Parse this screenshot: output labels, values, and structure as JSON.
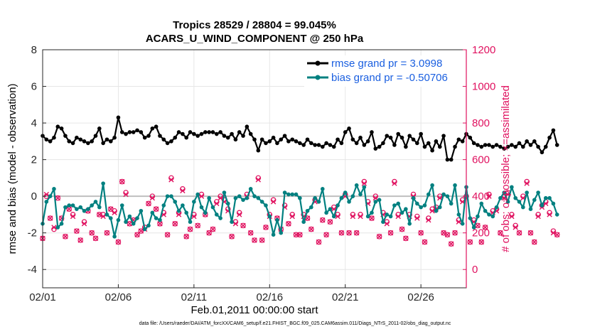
{
  "chart_data": {
    "type": "line",
    "title": [
      "Tropics 28529 / 28804 = 99.045%",
      "ACARS_U_WIND_COMPONENT @ 250 hPa"
    ],
    "xlabel": "Feb.01,2011 00:00:00 start",
    "ylabel_left": "rmse and bias (model - observation)",
    "ylabel_right": "# of obs: o=possible; ×=assimilated",
    "footer": "data file: /Users/raeder/DAI/ATM_forcXX/CAM6_setup/f.e21.FHIST_BGC.f09_025.CAM6assim.011/Diags_NTrS_2011-02/obs_diag_output.nc",
    "x_ticks": [
      "02/01",
      "02/06",
      "02/11",
      "02/16",
      "02/21",
      "02/26"
    ],
    "x_tick_days": [
      0,
      5,
      10,
      15,
      20,
      25
    ],
    "xlim": [
      0,
      28
    ],
    "ylim_left": [
      -5,
      8
    ],
    "yticks_left": [
      -4,
      -2,
      0,
      2,
      4,
      6,
      8
    ],
    "ylim_right": [
      -100,
      1200
    ],
    "yticks_right": [
      0,
      200,
      400,
      600,
      800,
      1000,
      1200
    ],
    "legend": [
      {
        "label": "rmse grand pr = 3.0998",
        "color": "#000000"
      },
      {
        "label": "bias grand pr = -0.50706",
        "color": "#008080"
      }
    ],
    "colors": {
      "rmse": "#000000",
      "bias": "#008080",
      "obs": "#e0115f",
      "zero": "#bfbfbf",
      "legend_text": "#1a5fe0"
    },
    "series": [
      {
        "name": "rmse",
        "x_start": 0,
        "x_step": 0.25,
        "values": [
          3.3,
          3.1,
          3.0,
          3.2,
          3.8,
          3.7,
          3.3,
          3.0,
          2.9,
          3.2,
          3.1,
          3.0,
          2.9,
          3.0,
          3.3,
          3.7,
          2.9,
          3.1,
          3.0,
          3.2,
          4.3,
          3.5,
          3.4,
          3.5,
          3.5,
          3.6,
          3.5,
          3.2,
          3.3,
          3.7,
          3.8,
          3.3,
          3.1,
          2.9,
          3.0,
          3.2,
          3.5,
          3.4,
          3.2,
          3.5,
          3.4,
          3.3,
          3.4,
          3.5,
          3.5,
          3.5,
          3.4,
          3.5,
          3.3,
          3.2,
          3.4,
          3.1,
          3.5,
          3.3,
          3.8,
          3.4,
          3.1,
          2.5,
          3.1,
          2.9,
          3.0,
          3.2,
          2.9,
          3.1,
          3.3,
          3.0,
          3.1,
          3.0,
          2.9,
          2.8,
          3.1,
          2.9,
          2.8,
          2.8,
          2.7,
          2.9,
          2.8,
          2.7,
          3.1,
          2.9,
          3.5,
          3.7,
          3.1,
          2.9,
          3.2,
          2.8,
          3.0,
          3.5,
          2.6,
          2.7,
          2.9,
          3.3,
          3.2,
          2.8,
          3.4,
          3.2,
          2.7,
          3.3,
          3.1,
          2.9,
          3.4,
          2.7,
          2.9,
          2.5,
          3.0,
          2.7,
          3.3,
          2.0,
          2.0,
          2.7,
          3.1,
          3.0,
          3.4,
          3.2,
          2.9,
          2.8,
          2.7,
          2.8,
          2.8,
          2.7,
          2.8,
          2.7,
          2.6,
          2.7,
          2.8,
          2.7,
          2.9,
          2.7,
          3.0,
          2.8,
          3.0,
          2.7,
          2.4,
          2.7,
          3.2,
          3.6,
          2.8
        ]
      },
      {
        "name": "bias",
        "x_start": 0,
        "x_step": 0.25,
        "values": [
          -1.5,
          -0.3,
          0.0,
          0.4,
          -1.7,
          -1.5,
          -0.6,
          -0.5,
          -0.5,
          -0.7,
          -0.6,
          -0.8,
          -0.7,
          -0.5,
          -0.3,
          -0.6,
          0.7,
          -1.0,
          -1.2,
          -2.2,
          -1.3,
          -0.5,
          -1.4,
          -1.1,
          -1.5,
          -1.2,
          -0.8,
          -1.8,
          -1.6,
          -0.9,
          -1.2,
          -1.3,
          -0.5,
          0.0,
          0.0,
          -0.3,
          -0.8,
          -0.5,
          -0.9,
          -1.4,
          -0.3,
          0.1,
          -0.6,
          -0.9,
          -0.1,
          -0.6,
          -1.0,
          -1.2,
          0.2,
          -0.4,
          -1.4,
          -0.1,
          0.0,
          -0.2,
          -0.1,
          0.4,
          0.0,
          -0.1,
          -0.3,
          -0.5,
          -1.1,
          -2.1,
          -1.3,
          -2.0,
          0.2,
          0.1,
          0.1,
          0.1,
          -0.1,
          -1.4,
          -0.8,
          -0.6,
          -0.1,
          -0.3,
          0.4,
          -0.9,
          -0.7,
          -1.1,
          -0.5,
          -0.1,
          0.2,
          -0.3,
          0.0,
          0.6,
          0.1,
          0.5,
          -1.1,
          -0.9,
          -0.3,
          -0.2,
          -1.4,
          -1.0,
          -1.1,
          -0.5,
          -0.4,
          -0.9,
          -0.7,
          -1.5,
          -0.1,
          -0.4,
          -0.6,
          -0.5,
          0.1,
          0.6,
          -0.8,
          -0.6,
          0.1,
          0.0,
          -0.4,
          0.6,
          -1.0,
          -1.5,
          0.5,
          -1.2,
          -1.7,
          -1.1,
          -0.4,
          -0.8,
          -1.0,
          -1.1,
          -0.6,
          -0.1,
          0.2,
          -0.3,
          0.5,
          -0.1,
          -0.3,
          -0.6,
          0.2,
          -0.7,
          -0.2,
          0.2,
          -0.5,
          -0.1,
          -0.1,
          -0.4,
          -1.0
        ]
      },
      {
        "name": "obs_possible",
        "axis": "right",
        "x_start": 0,
        "x_step": 0.25,
        "values": [
          170,
          400,
          280,
          220,
          390,
          280,
          180,
          330,
          300,
          210,
          160,
          260,
          320,
          200,
          170,
          300,
          300,
          200,
          330,
          320,
          150,
          480,
          420,
          250,
          270,
          190,
          210,
          230,
          360,
          400,
          330,
          250,
          310,
          190,
          500,
          250,
          310,
          440,
          180,
          220,
          300,
          240,
          410,
          300,
          200,
          220,
          370,
          400,
          380,
          330,
          180,
          260,
          310,
          240,
          410,
          200,
          160,
          500,
          160,
          230,
          300,
          380,
          280,
          220,
          350,
          250,
          300,
          190,
          190,
          300,
          280,
          220,
          380,
          150,
          270,
          190,
          260,
          340,
          300,
          200,
          410,
          200,
          300,
          200,
          300,
          480,
          370,
          280,
          400,
          180,
          310,
          260,
          200,
          480,
          300,
          220,
          170,
          300,
          410,
          290,
          200,
          150,
          280,
          330,
          340,
          400,
          200,
          190,
          140,
          200,
          270,
          380,
          400,
          150,
          270,
          240,
          150,
          230,
          410,
          320,
          330,
          200,
          400,
          420,
          300,
          240,
          200,
          400,
          480,
          200,
          150,
          300,
          350,
          370,
          310,
          210,
          190
        ]
      },
      {
        "name": "obs_assimilated",
        "axis": "right",
        "x_start": 0,
        "x_step": 0.25,
        "values": [
          170,
          410,
          280,
          230,
          390,
          280,
          180,
          330,
          290,
          210,
          160,
          250,
          320,
          200,
          170,
          300,
          290,
          200,
          330,
          310,
          150,
          480,
          410,
          250,
          270,
          190,
          210,
          220,
          360,
          390,
          330,
          250,
          300,
          190,
          490,
          250,
          300,
          430,
          180,
          220,
          290,
          240,
          400,
          300,
          200,
          220,
          360,
          390,
          370,
          320,
          180,
          250,
          300,
          240,
          400,
          200,
          160,
          490,
          160,
          230,
          290,
          370,
          280,
          220,
          340,
          250,
          290,
          190,
          190,
          290,
          280,
          220,
          370,
          150,
          270,
          190,
          260,
          330,
          290,
          200,
          400,
          200,
          290,
          200,
          290,
          470,
          360,
          280,
          390,
          180,
          300,
          250,
          200,
          470,
          290,
          220,
          170,
          290,
          400,
          280,
          200,
          150,
          270,
          320,
          330,
          390,
          200,
          190,
          140,
          200,
          260,
          370,
          390,
          150,
          260,
          240,
          150,
          230,
          400,
          310,
          320,
          200,
          390,
          410,
          290,
          230,
          200,
          390,
          470,
          200,
          150,
          290,
          340,
          360,
          300,
          200,
          190
        ]
      }
    ]
  }
}
